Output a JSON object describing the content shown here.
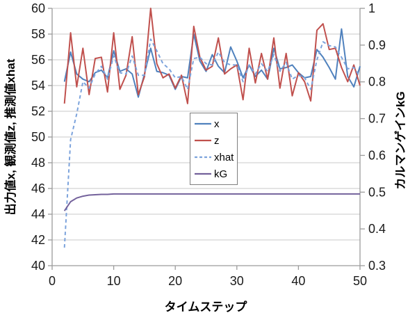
{
  "chart_data": {
    "type": "line",
    "title": "",
    "xlabel": "タイムステップ",
    "ylabel_left": "出力値x, 観測値z, 推測値xhat",
    "ylabel_right": "カルマンゲインkG",
    "grid": "horizontal",
    "legend_position": "center",
    "x_axis": {
      "min": 0,
      "max": 50,
      "ticks": [
        "0",
        "10",
        "20",
        "30",
        "40",
        "50"
      ],
      "tick_values": [
        0,
        10,
        20,
        30,
        40,
        50
      ]
    },
    "y_left": {
      "min": 40,
      "max": 60,
      "ticks": [
        "40",
        "42",
        "44",
        "46",
        "48",
        "50",
        "52",
        "54",
        "56",
        "58",
        "60"
      ],
      "tick_values": [
        40,
        42,
        44,
        46,
        48,
        50,
        52,
        54,
        56,
        58,
        60
      ]
    },
    "y_right": {
      "min": 0.3,
      "max": 1,
      "ticks": [
        "0.3",
        "0.4",
        "0.5",
        "0.6",
        "0.7",
        "0.8",
        "0.9",
        "1"
      ],
      "tick_values": [
        0.3,
        0.4,
        0.5,
        0.6,
        0.7,
        0.8,
        0.9,
        1
      ]
    },
    "colors": {
      "grid": "#C9C9C9",
      "axis": "#9B9B9B",
      "tick_text": "#1A1A1A"
    },
    "x": [
      2,
      3,
      4,
      5,
      6,
      7,
      8,
      9,
      10,
      11,
      12,
      13,
      14,
      15,
      16,
      17,
      18,
      19,
      20,
      21,
      22,
      23,
      24,
      25,
      26,
      27,
      28,
      29,
      30,
      31,
      32,
      33,
      34,
      35,
      36,
      37,
      38,
      39,
      40,
      41,
      42,
      43,
      44,
      45,
      46,
      47,
      48,
      49,
      50
    ],
    "series": [
      {
        "name": "x",
        "axis": "left",
        "color": "#4F81BD",
        "dash": null,
        "width": 2,
        "values": [
          54.3,
          56.6,
          54.9,
          54.5,
          54.3,
          55.0,
          55.2,
          54.6,
          56.7,
          55.1,
          55.3,
          54.9,
          53.1,
          54.9,
          56.9,
          55.1,
          55.0,
          54.8,
          53.7,
          54.7,
          54.6,
          58.0,
          55.9,
          55.1,
          56.4,
          55.5,
          55.0,
          57.0,
          55.9,
          54.6,
          55.6,
          54.7,
          55.2,
          54.5,
          56.9,
          55.3,
          55.4,
          55.6,
          55.0,
          54.6,
          54.7,
          56.8,
          56.2,
          55.4,
          54.5,
          58.4,
          54.7,
          53.9,
          55.5
        ]
      },
      {
        "name": "z",
        "axis": "left",
        "color": "#C0504D",
        "dash": null,
        "width": 2,
        "values": [
          52.6,
          58.1,
          53.9,
          56.9,
          53.3,
          56.1,
          56.2,
          53.5,
          58.1,
          53.7,
          54.8,
          57.8,
          53.3,
          54.7,
          60.0,
          55.7,
          54.6,
          54.9,
          53.8,
          54.8,
          52.6,
          58.6,
          56.2,
          55.2,
          55.5,
          57.7,
          54.9,
          55.3,
          55.6,
          52.9,
          56.9,
          54.2,
          56.5,
          54.5,
          57.7,
          53.8,
          56.5,
          53.2,
          55.0,
          54.3,
          52.8,
          58.3,
          58.8,
          56.8,
          56.9,
          55.4,
          54.3,
          55.6,
          54.0
        ]
      },
      {
        "name": "xhat",
        "axis": "left",
        "color": "#7CA3DC",
        "dash": "5,4",
        "width": 2,
        "values": [
          41.4,
          49.8,
          51.8,
          54.3,
          53.8,
          54.9,
          55.5,
          54.5,
          56.3,
          55.0,
          54.9,
          56.3,
          54.8,
          54.8,
          57.6,
          56.7,
          55.7,
          55.3,
          54.6,
          54.7,
          53.7,
          56.1,
          56.2,
          55.7,
          55.6,
          56.6,
          55.8,
          55.6,
          55.6,
          54.3,
          55.6,
          54.9,
          55.7,
          55.1,
          56.4,
          55.1,
          55.8,
          54.5,
          54.8,
          54.6,
          53.7,
          56.0,
          57.4,
          57.1,
          57.0,
          56.2,
          55.3,
          55.4,
          54.7
        ]
      },
      {
        "name": "kG",
        "axis": "right",
        "color": "#73619B",
        "dash": null,
        "width": 2,
        "values": [
          0.449,
          0.474,
          0.484,
          0.489,
          0.492,
          0.493,
          0.494,
          0.494,
          0.495,
          0.495,
          0.495,
          0.495,
          0.495,
          0.495,
          0.495,
          0.495,
          0.495,
          0.495,
          0.495,
          0.495,
          0.495,
          0.495,
          0.495,
          0.495,
          0.495,
          0.495,
          0.495,
          0.495,
          0.495,
          0.495,
          0.495,
          0.495,
          0.495,
          0.495,
          0.495,
          0.495,
          0.495,
          0.495,
          0.495,
          0.495,
          0.495,
          0.495,
          0.495,
          0.495,
          0.495,
          0.495,
          0.495,
          0.495,
          0.495
        ]
      }
    ],
    "legend": {
      "border_color": "#7F7F7F",
      "background": "#FFFFFF",
      "items": [
        "x",
        "z",
        "xhat",
        "kG"
      ]
    }
  }
}
